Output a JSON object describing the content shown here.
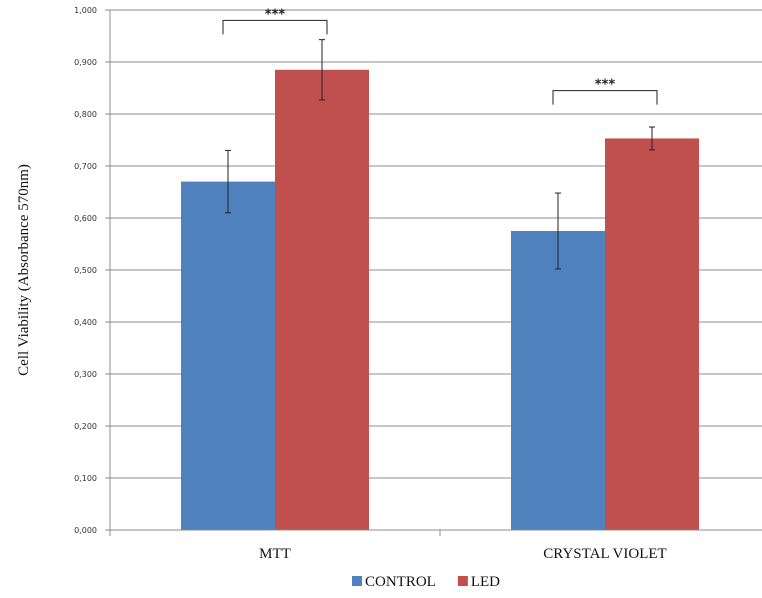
{
  "chart_data": {
    "type": "bar",
    "categories": [
      "MTT",
      "CRYSTAL VIOLET"
    ],
    "series": [
      {
        "name": "CONTROL",
        "values": [
          0.67,
          0.575
        ],
        "error": [
          0.06,
          0.073
        ],
        "color": "#4f81bd"
      },
      {
        "name": "LED",
        "values": [
          0.885,
          0.753
        ],
        "error": [
          0.058,
          0.022
        ],
        "color": "#c0504d"
      }
    ],
    "ylabel": "Cell Viability (Absorbance 570nm)",
    "xlabel": "",
    "ylim": [
      0,
      1.0
    ],
    "yticks": [
      "0,000",
      "0,100",
      "0,200",
      "0,300",
      "0,400",
      "0,500",
      "0,600",
      "0,700",
      "0,800",
      "0,900",
      "1,000"
    ],
    "grid": true,
    "legend_position": "bottom",
    "annotations": [
      {
        "category": "MTT",
        "text": "***",
        "level": 0.98
      },
      {
        "category": "CRYSTAL VIOLET",
        "text": "***",
        "level": 0.845
      }
    ]
  }
}
